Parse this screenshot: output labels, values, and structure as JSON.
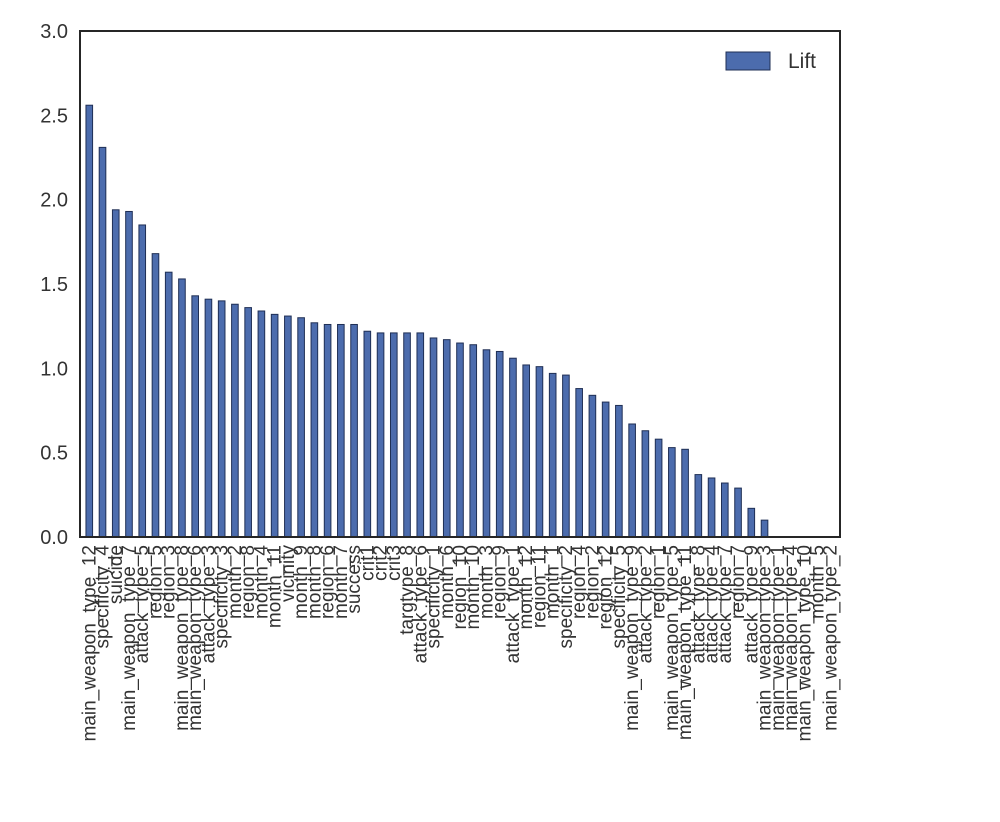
{
  "chart_data": {
    "type": "bar",
    "ylim": [
      0,
      3.0
    ],
    "yticks": [
      "0.0",
      "0.5",
      "1.0",
      "1.5",
      "2.0",
      "2.5",
      "3.0"
    ],
    "grid": false,
    "legend_position": "top-right",
    "bar_color": "#4c6cad",
    "series": [
      {
        "name": "Lift",
        "categories": [
          "main_weapon_type_12",
          "specificity_4",
          "suicide",
          "main_weapon_type_7",
          "attack_type_5",
          "region_5",
          "region_3",
          "main_weapon_type_8",
          "main_weapon_type_6",
          "attack_type_3",
          "specificity_3",
          "month_2",
          "region_8",
          "month_4",
          "month_11",
          "vicinity",
          "month_9",
          "month_8",
          "region_6",
          "month_7",
          "success",
          "crit1",
          "crit2",
          "crit3",
          "targtype_8",
          "attack_type_6",
          "specificity_1",
          "month_6",
          "region_10",
          "month_10",
          "month_3",
          "region_9",
          "attack_type_1",
          "month_12",
          "region_11",
          "month_1",
          "specificity_2",
          "region_4",
          "region_2",
          "region_12",
          "specificity_5",
          "main_weapon_type_9",
          "attack_type_2",
          "region_1",
          "main_weapon_type_5",
          "main_weapon_type_11",
          "attack_type_8",
          "attack_type_4",
          "attack_type_7",
          "region_7",
          "attack_type_9",
          "main_weapon_type_3",
          "main_weapon_type_1",
          "main_weapon_type_4",
          "main_weapon_type_10",
          "month_5",
          "main_weapon_type_2"
        ],
        "values": [
          2.56,
          2.31,
          1.94,
          1.93,
          1.85,
          1.68,
          1.57,
          1.53,
          1.43,
          1.41,
          1.4,
          1.38,
          1.36,
          1.34,
          1.32,
          1.31,
          1.3,
          1.27,
          1.26,
          1.26,
          1.26,
          1.22,
          1.21,
          1.21,
          1.21,
          1.21,
          1.18,
          1.17,
          1.15,
          1.14,
          1.11,
          1.1,
          1.06,
          1.02,
          1.01,
          0.97,
          0.96,
          0.88,
          0.84,
          0.8,
          0.78,
          0.67,
          0.63,
          0.58,
          0.53,
          0.52,
          0.37,
          0.35,
          0.32,
          0.29,
          0.17,
          0.1,
          0.0,
          0.0,
          0.0,
          0.0,
          0.0
        ]
      }
    ]
  }
}
